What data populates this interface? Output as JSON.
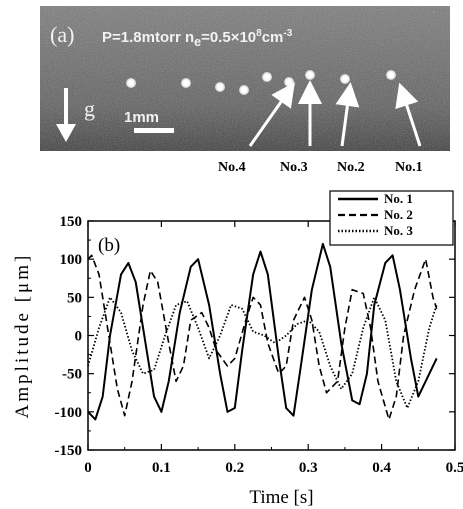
{
  "panel_a": {
    "label": "(a)",
    "conditions_prefix": "P=1.8mtorr n",
    "conditions_sub": "e",
    "conditions_mid": "=0.5×10",
    "conditions_exp": "8",
    "conditions_unit": "cm",
    "conditions_unit_exp": "-3",
    "gravity_label": "g",
    "scale_label": "1mm",
    "particle_labels": [
      "No.4",
      "No.3",
      "No.2",
      "No.1"
    ]
  },
  "chart_data": {
    "type": "line",
    "panel_label": "(b)",
    "xlabel": "Time [s]",
    "ylabel": "Amplitude [μm]",
    "xlim": [
      0,
      0.5
    ],
    "ylim": [
      -150,
      150
    ],
    "xticks": [
      0,
      0.1,
      0.2,
      0.3,
      0.4,
      0.5
    ],
    "yticks": [
      -150,
      -100,
      -50,
      0,
      50,
      100,
      150
    ],
    "legend_position": "top-right",
    "series": [
      {
        "name": "No. 1",
        "style": "solid",
        "x": [
          0,
          0.01,
          0.02,
          0.03,
          0.045,
          0.055,
          0.065,
          0.08,
          0.09,
          0.1,
          0.11,
          0.125,
          0.14,
          0.15,
          0.165,
          0.18,
          0.19,
          0.2,
          0.21,
          0.225,
          0.235,
          0.245,
          0.26,
          0.27,
          0.28,
          0.29,
          0.305,
          0.32,
          0.33,
          0.345,
          0.36,
          0.37,
          0.38,
          0.39,
          0.405,
          0.415,
          0.425,
          0.44,
          0.45,
          0.46,
          0.475
        ],
        "y": [
          -100,
          -110,
          -80,
          0,
          80,
          95,
          70,
          -20,
          -80,
          -100,
          -60,
          30,
          90,
          100,
          40,
          -50,
          -100,
          -95,
          -20,
          80,
          110,
          80,
          -30,
          -95,
          -105,
          -40,
          60,
          120,
          90,
          -10,
          -85,
          -90,
          -50,
          40,
          95,
          105,
          60,
          -30,
          -80,
          -60,
          -30
        ]
      },
      {
        "name": "No. 2",
        "style": "dashed",
        "x": [
          0,
          0.005,
          0.015,
          0.03,
          0.04,
          0.05,
          0.06,
          0.075,
          0.085,
          0.095,
          0.11,
          0.12,
          0.13,
          0.14,
          0.155,
          0.165,
          0.175,
          0.19,
          0.2,
          0.215,
          0.225,
          0.235,
          0.245,
          0.26,
          0.27,
          0.28,
          0.295,
          0.305,
          0.315,
          0.325,
          0.34,
          0.35,
          0.36,
          0.375,
          0.385,
          0.395,
          0.41,
          0.42,
          0.43,
          0.445,
          0.46,
          0.47,
          0.475
        ],
        "y": [
          100,
          105,
          80,
          -10,
          -70,
          -105,
          -60,
          40,
          85,
          70,
          -10,
          -60,
          -40,
          20,
          30,
          10,
          -20,
          -40,
          -30,
          20,
          50,
          40,
          -10,
          -50,
          -40,
          20,
          50,
          20,
          -40,
          -75,
          -60,
          10,
          60,
          55,
          10,
          -60,
          -110,
          -80,
          0,
          60,
          100,
          50,
          35
        ]
      },
      {
        "name": "No. 3",
        "style": "dotted",
        "x": [
          0,
          0.015,
          0.03,
          0.045,
          0.06,
          0.075,
          0.09,
          0.105,
          0.12,
          0.135,
          0.15,
          0.165,
          0.18,
          0.195,
          0.21,
          0.225,
          0.24,
          0.255,
          0.27,
          0.285,
          0.3,
          0.315,
          0.33,
          0.345,
          0.36,
          0.375,
          0.39,
          0.405,
          0.42,
          0.435,
          0.45,
          0.465,
          0.475
        ],
        "y": [
          -40,
          10,
          50,
          30,
          -20,
          -50,
          -45,
          0,
          40,
          45,
          10,
          -30,
          0,
          40,
          35,
          5,
          0,
          -10,
          0,
          15,
          20,
          5,
          -40,
          -70,
          -50,
          10,
          50,
          20,
          -60,
          -95,
          -60,
          10,
          40
        ]
      }
    ]
  }
}
